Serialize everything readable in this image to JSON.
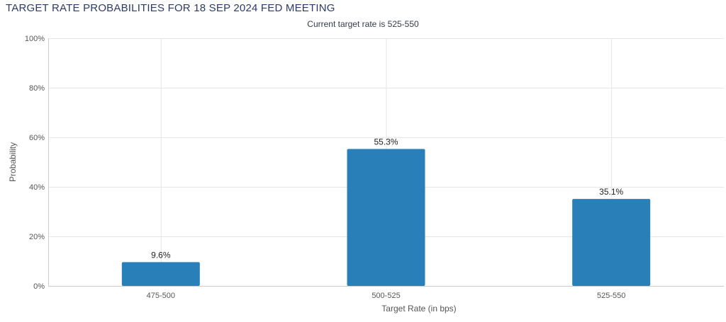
{
  "chart_data": {
    "type": "bar",
    "title": "TARGET RATE PROBABILITIES FOR 18 SEP 2024 FED MEETING",
    "subtitle": "Current target rate is 525-550",
    "xlabel": "Target Rate (in bps)",
    "ylabel": "Probability",
    "categories": [
      "475-500",
      "500-525",
      "525-550"
    ],
    "values": [
      9.6,
      55.3,
      35.1
    ],
    "data_labels": [
      "9.6%",
      "55.3%",
      "35.1%"
    ],
    "ylim": [
      0,
      100
    ],
    "yticks": [
      0,
      20,
      40,
      60,
      80,
      100
    ],
    "ytick_labels": [
      "0%",
      "20%",
      "40%",
      "60%",
      "80%",
      "100%"
    ],
    "grid": true,
    "legend": "none",
    "colors": {
      "bar": "#2980b9",
      "title": "#2b3a67",
      "grid": "#e6e6e6",
      "axis": "#cccccc"
    }
  }
}
